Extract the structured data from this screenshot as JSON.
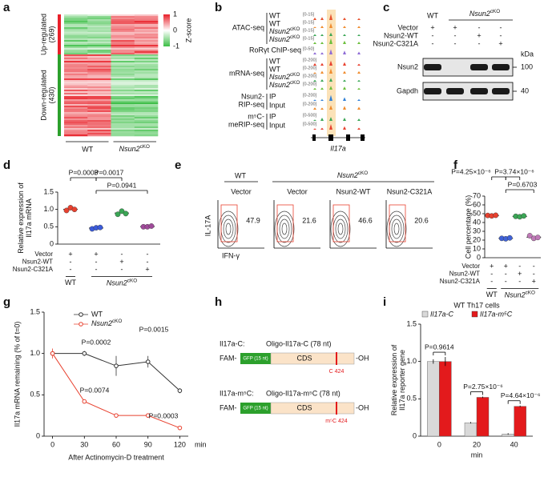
{
  "panel_letters": [
    "a",
    "b",
    "c",
    "d",
    "e",
    "f",
    "g",
    "h",
    "i"
  ],
  "heatmap": {
    "up_label": "Up-regulated",
    "up_count": "(269)",
    "down_label": "Down-regulated",
    "down_count": "(430)",
    "colorbar_title": "Z-score",
    "colorbar_ticks": [
      1,
      0,
      -1
    ],
    "columns": [
      "WT",
      [
        "Nsun2",
        "cKO"
      ]
    ]
  },
  "tracks": {
    "groups": [
      {
        "name": "ATAC-seq",
        "rows": [
          {
            "label": "WT",
            "range": "[0-15]",
            "color": "#e8532f"
          },
          {
            "label": "WT",
            "range": "[0-15]",
            "color": "#f08c2e"
          },
          {
            "label": [
              "Nsun2",
              "cKO"
            ],
            "range": "[0-15]",
            "color": "#3aa655"
          },
          {
            "label": [
              "Nsun2",
              "cKO"
            ],
            "range": "[0-15]",
            "color": "#6cbf3c"
          }
        ]
      },
      {
        "name": "RoRγt ChIP-seq",
        "rows": [
          {
            "range": "[0-50]",
            "color": "#8e6bd6"
          }
        ]
      },
      {
        "name": "mRNA-seq",
        "rows": [
          {
            "label": "WT",
            "range": "[0-200]",
            "color": "#e8412f"
          },
          {
            "label": "WT",
            "range": "[0-200]",
            "color": "#f08c2e"
          },
          {
            "label": [
              "Nsun2",
              "cKO"
            ],
            "range": "[0-200]",
            "color": "#3aa655"
          },
          {
            "label": [
              "Nsun2",
              "cKO"
            ],
            "range": "[0-200]",
            "color": "#6cbf3c"
          }
        ]
      },
      {
        "name": [
          "Nsun2-",
          "RIP-seq"
        ],
        "rows": [
          {
            "label": "IP",
            "range": "[0-200]",
            "color": "#2f7fd6"
          },
          {
            "label": "Input",
            "range": "[0-200]",
            "color": "#f08c2e"
          }
        ]
      },
      {
        "name": [
          "m⁵C-",
          "meRIP-seq"
        ],
        "rows": [
          {
            "label": "IP",
            "range": "[0-500]",
            "color": "#3aa655"
          },
          {
            "label": "Input",
            "range": "[0-500]",
            "color": "#e8412f"
          }
        ]
      }
    ],
    "gene": "Il17a"
  },
  "blot": {
    "header": [
      "WT",
      [
        "Nsun2",
        "cKO"
      ]
    ],
    "rows": [
      {
        "name": "Vector",
        "signs": [
          "+",
          "+",
          "-",
          "-"
        ]
      },
      {
        "name": "Nsun2-WT",
        "signs": [
          "-",
          "-",
          "+",
          "-"
        ]
      },
      {
        "name": "Nsun2-C321A",
        "signs": [
          "-",
          "-",
          "-",
          "+"
        ]
      }
    ],
    "bands": [
      "Nsun2",
      "Gapdh"
    ],
    "unit": "kDa",
    "markers": [
      100,
      40
    ]
  },
  "flow": {
    "header": [
      "WT",
      [
        "Nsun2",
        "cKO"
      ]
    ],
    "conditions": [
      "Vector",
      "Vector",
      "Nsun2-WT",
      "Nsun2-C321A"
    ],
    "percentages": [
      47.9,
      21.6,
      46.6,
      20.6
    ],
    "ylabel": "IL-17A",
    "xlabel": "IFN-γ"
  },
  "constructs": [
    {
      "name": "Il17a-C:",
      "oligo": "Oligo-Il17a-C (78 nt)",
      "prefix": "FAM-",
      "gfp": "GFP (15 nt)",
      "cds": "CDS",
      "suffix": "-OH",
      "site": "C 424"
    },
    {
      "name": "Il17a-m⁵C:",
      "oligo": "Oligo-Il17a-m⁵C (78 nt)",
      "prefix": "FAM-",
      "gfp": "GFP (15 nt)",
      "cds": "CDS",
      "suffix": "-OH",
      "site": "m⁵C 424"
    }
  ],
  "chart_data": [
    {
      "type": "dot",
      "ylabel": [
        "Relative expression of",
        "Il17a mRNA"
      ],
      "ylim": [
        0,
        1.5
      ],
      "yticks": [
        0,
        0.5,
        {
          "value": 1,
          "label": "1.0"
        },
        1.5
      ],
      "groups": [
        {
          "color": "#e8412f",
          "values": [
            0.97,
            1.05,
            1.0
          ]
        },
        {
          "color": "#3b5bdb",
          "values": [
            0.44,
            0.47,
            0.48
          ]
        },
        {
          "color": "#3aa655",
          "values": [
            0.86,
            0.95,
            0.88
          ]
        },
        {
          "color": "#a04a9a",
          "values": [
            0.5,
            0.5,
            0.52
          ]
        }
      ],
      "condition_rows": [
        {
          "name": "Vector",
          "signs": [
            "+",
            "+",
            "-",
            "-"
          ]
        },
        {
          "name": "Nsun2-WT",
          "signs": [
            "-",
            "-",
            "+",
            "-"
          ]
        },
        {
          "name": "Nsun2-C321A",
          "signs": [
            "-",
            "-",
            "-",
            "+"
          ]
        }
      ],
      "group_labels": [
        "WT",
        [
          "Nsun2",
          "cKO"
        ]
      ],
      "pvalues": [
        "P=0.0003",
        "P=0.0017",
        "P=0.0941"
      ]
    },
    {
      "type": "dot",
      "ylabel": "Cell percentage (%)",
      "ylim": [
        0,
        70
      ],
      "yticks": [
        0,
        10,
        20,
        30,
        40,
        50,
        60,
        70
      ],
      "groups": [
        {
          "color": "#e8412f",
          "values": [
            48,
            47.5,
            48.2
          ]
        },
        {
          "color": "#4062d8",
          "values": [
            22,
            21.5,
            22.5
          ]
        },
        {
          "color": "#3aa655",
          "values": [
            47,
            46.5,
            47.5
          ]
        },
        {
          "color": "#c07ab8",
          "values": [
            25,
            22,
            23
          ]
        }
      ],
      "condition_rows": [
        {
          "name": "Vector",
          "signs": [
            "+",
            "+",
            "-",
            "-"
          ]
        },
        {
          "name": "Nsun2-WT",
          "signs": [
            "-",
            "-",
            "+",
            "-"
          ]
        },
        {
          "name": "Nsun2-C321A",
          "signs": [
            "-",
            "-",
            "-",
            "+"
          ]
        }
      ],
      "group_labels": [
        "WT",
        [
          "Nsun2",
          "cKO"
        ]
      ],
      "pvalues": [
        "P=4.25×10⁻⁶",
        "P=3.74×10⁻⁶",
        "P=0.6703"
      ]
    },
    {
      "type": "line",
      "ylabel": "Il17a mRNA remaining (% of t=0)",
      "xlabel": "After Actinomycin-D treatment",
      "x_unit": "min",
      "x": [
        0,
        30,
        60,
        90,
        120
      ],
      "xlim": [
        -8,
        128
      ],
      "xticks": [
        0,
        30,
        60,
        90,
        120
      ],
      "ylim": [
        0,
        1.5
      ],
      "yticks": [
        0,
        0.5,
        {
          "value": 1,
          "label": "1.0"
        },
        1.5
      ],
      "series": [
        {
          "name": "WT",
          "color": "#333333",
          "values": [
            1.0,
            1.0,
            0.85,
            0.9,
            0.55
          ],
          "errors": [
            0.02,
            0.03,
            0.12,
            0.07,
            0.03
          ]
        },
        {
          "name": [
            "Nsun2",
            "cKO"
          ],
          "color": "#e8412f",
          "values": [
            1.0,
            0.42,
            0.25,
            0.25,
            0.1
          ],
          "errors": [
            0.06,
            0.01,
            0.01,
            0.01,
            0.01
          ]
        }
      ],
      "pvalues": [
        "P=0.0002",
        "P=0.0015",
        "P=0.0074",
        "P=0.0003"
      ]
    },
    {
      "type": "bar",
      "title": "WT Th17 cells",
      "ylabel": [
        "Relative expression of",
        "Il17a reporter gene"
      ],
      "x_unit": "min",
      "categories": [
        "0",
        "20",
        "40"
      ],
      "ylim": [
        0,
        1.5
      ],
      "yticks": [
        0,
        0.5,
        {
          "value": 1,
          "label": "1.0"
        },
        1.5
      ],
      "series": [
        {
          "name": "Il17a-C",
          "color": "#d9d9d9",
          "values": [
            1.0,
            0.18,
            0.03
          ],
          "errors": [
            0.03,
            0.01,
            0.01
          ]
        },
        {
          "name": "Il17a-m⁵C",
          "color": "#e31a1c",
          "values": [
            1.0,
            0.52,
            0.4
          ],
          "errors": [
            0.06,
            0.01,
            0.01
          ]
        }
      ],
      "pvalues": [
        "P=0.9614",
        "P=2.75×10⁻⁶",
        "P=4.64×10⁻⁶"
      ]
    }
  ]
}
